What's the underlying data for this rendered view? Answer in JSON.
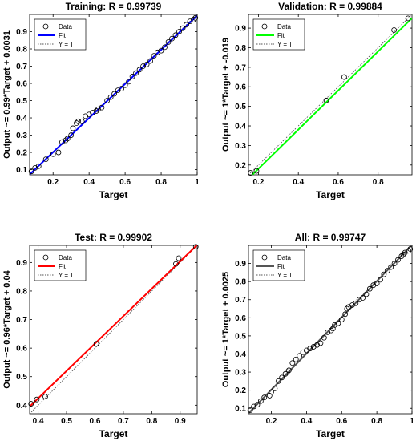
{
  "chart_data": [
    {
      "type": "scatter",
      "title": "Training: R = 0.99739",
      "xlabel": "Target",
      "ylabel": "Output ~= 0.99*Target + 0.0031",
      "xlim": [
        0.07,
        1.0
      ],
      "ylim": [
        0.07,
        1.0
      ],
      "xticks": [
        0.2,
        0.4,
        0.6,
        0.8,
        1
      ],
      "yticks": [
        0.1,
        0.2,
        0.3,
        0.4,
        0.5,
        0.6,
        0.7,
        0.8,
        0.9
      ],
      "xtick_labels": [
        "0.2",
        "0.4",
        "0.6",
        "0.8",
        "1"
      ],
      "ytick_labels": [
        "0.1",
        "0.2",
        "0.3",
        "0.4",
        "0.5",
        "0.6",
        "0.7",
        "0.8",
        "0.9"
      ],
      "fit": {
        "slope": 0.99,
        "intercept": 0.0031,
        "color": "#0000ff"
      },
      "legend": {
        "position": "top-left",
        "entries": [
          "Data",
          "Fit",
          "Y = T"
        ]
      },
      "grid": false,
      "series": [
        {
          "name": "Data",
          "x": [
            0.08,
            0.1,
            0.12,
            0.16,
            0.2,
            0.23,
            0.25,
            0.27,
            0.28,
            0.3,
            0.31,
            0.33,
            0.34,
            0.36,
            0.38,
            0.4,
            0.42,
            0.44,
            0.45,
            0.47,
            0.5,
            0.52,
            0.54,
            0.56,
            0.58,
            0.6,
            0.62,
            0.64,
            0.66,
            0.68,
            0.7,
            0.72,
            0.74,
            0.76,
            0.78,
            0.8,
            0.82,
            0.84,
            0.86,
            0.88,
            0.9,
            0.92,
            0.94,
            0.96,
            0.98,
            0.99
          ],
          "y": [
            0.09,
            0.11,
            0.12,
            0.16,
            0.19,
            0.2,
            0.26,
            0.27,
            0.28,
            0.3,
            0.34,
            0.37,
            0.38,
            0.38,
            0.41,
            0.42,
            0.43,
            0.44,
            0.45,
            0.46,
            0.5,
            0.52,
            0.54,
            0.56,
            0.57,
            0.59,
            0.61,
            0.64,
            0.66,
            0.68,
            0.7,
            0.71,
            0.73,
            0.76,
            0.78,
            0.79,
            0.81,
            0.84,
            0.86,
            0.88,
            0.9,
            0.92,
            0.94,
            0.96,
            0.97,
            0.98
          ]
        }
      ]
    },
    {
      "type": "scatter",
      "title": "Validation: R = 0.99884",
      "xlabel": "Target",
      "ylabel": "Output ~= 1*Target + -0.019",
      "xlim": [
        0.15,
        0.97
      ],
      "ylim": [
        0.15,
        0.97
      ],
      "xticks": [
        0.2,
        0.4,
        0.6,
        0.8
      ],
      "yticks": [
        0.2,
        0.3,
        0.4,
        0.5,
        0.6,
        0.7,
        0.8,
        0.9
      ],
      "xtick_labels": [
        "0.2",
        "0.4",
        "0.6",
        "0.8"
      ],
      "ytick_labels": [
        "0.2",
        "0.3",
        "0.4",
        "0.5",
        "0.6",
        "0.7",
        "0.8",
        "0.9"
      ],
      "fit": {
        "slope": 1,
        "intercept": -0.019,
        "color": "#00ff00"
      },
      "legend": {
        "position": "top-left",
        "entries": [
          "Data",
          "Fit",
          "Y = T"
        ]
      },
      "grid": false,
      "series": [
        {
          "name": "Data",
          "x": [
            0.16,
            0.19,
            0.54,
            0.63,
            0.88,
            0.95
          ],
          "y": [
            0.16,
            0.17,
            0.53,
            0.65,
            0.89,
            0.95
          ]
        }
      ]
    },
    {
      "type": "scatter",
      "title": "Test: R = 0.99902",
      "xlabel": "Target",
      "ylabel": "Output ~= 0.96*Target + 0.04",
      "xlim": [
        0.37,
        0.96
      ],
      "ylim": [
        0.37,
        0.96
      ],
      "xticks": [
        0.4,
        0.5,
        0.6,
        0.7,
        0.8,
        0.9
      ],
      "yticks": [
        0.4,
        0.5,
        0.6,
        0.7,
        0.8,
        0.9
      ],
      "xtick_labels": [
        "0.4",
        "0.5",
        "0.6",
        "0.7",
        "0.8",
        "0.9"
      ],
      "ytick_labels": [
        "0.4",
        "0.5",
        "0.6",
        "0.7",
        "0.8",
        "0.9"
      ],
      "fit": {
        "slope": 0.96,
        "intercept": 0.04,
        "color": "#ff0000"
      },
      "legend": {
        "position": "top-left",
        "entries": [
          "Data",
          "Fit",
          "Y = T"
        ]
      },
      "grid": false,
      "series": [
        {
          "name": "Data",
          "x": [
            0.375,
            0.395,
            0.425,
            0.605,
            0.885,
            0.895,
            0.955
          ],
          "y": [
            0.405,
            0.42,
            0.43,
            0.615,
            0.895,
            0.915,
            0.955
          ]
        }
      ]
    },
    {
      "type": "scatter",
      "title": "All: R = 0.99747",
      "xlabel": "Target",
      "ylabel": "Output ~= 1*Target + 0.0025",
      "xlim": [
        0.07,
        1.0
      ],
      "ylim": [
        0.07,
        1.0
      ],
      "xticks": [
        0.2,
        0.4,
        0.6,
        0.8,
        1
      ],
      "yticks": [
        0.1,
        0.2,
        0.3,
        0.4,
        0.5,
        0.6,
        0.7,
        0.8,
        0.9
      ],
      "xtick_labels": [
        "0.2",
        "0.4",
        "0.6",
        "0.8",
        "1"
      ],
      "ytick_labels": [
        "0.1",
        "0.2",
        "0.3",
        "0.4",
        "0.5",
        "0.6",
        "0.7",
        "0.8",
        "0.9"
      ],
      "fit": {
        "slope": 1,
        "intercept": 0.0025,
        "color": "#555555"
      },
      "legend": {
        "position": "top-left",
        "entries": [
          "Data",
          "Fit",
          "Y = T"
        ]
      },
      "grid": false,
      "series": [
        {
          "name": "Data",
          "x": [
            0.08,
            0.1,
            0.12,
            0.14,
            0.16,
            0.19,
            0.2,
            0.22,
            0.24,
            0.26,
            0.28,
            0.29,
            0.3,
            0.32,
            0.34,
            0.36,
            0.38,
            0.4,
            0.42,
            0.44,
            0.46,
            0.48,
            0.5,
            0.52,
            0.54,
            0.55,
            0.56,
            0.58,
            0.6,
            0.62,
            0.63,
            0.64,
            0.66,
            0.68,
            0.7,
            0.72,
            0.74,
            0.76,
            0.78,
            0.8,
            0.82,
            0.84,
            0.86,
            0.88,
            0.9,
            0.92,
            0.94,
            0.95,
            0.96,
            0.98,
            0.99
          ],
          "y": [
            0.09,
            0.11,
            0.12,
            0.14,
            0.16,
            0.17,
            0.19,
            0.21,
            0.25,
            0.27,
            0.29,
            0.3,
            0.31,
            0.35,
            0.37,
            0.39,
            0.41,
            0.42,
            0.43,
            0.44,
            0.45,
            0.46,
            0.49,
            0.52,
            0.53,
            0.54,
            0.56,
            0.57,
            0.59,
            0.62,
            0.65,
            0.66,
            0.67,
            0.68,
            0.7,
            0.71,
            0.73,
            0.76,
            0.78,
            0.79,
            0.81,
            0.84,
            0.86,
            0.88,
            0.9,
            0.92,
            0.94,
            0.95,
            0.96,
            0.97,
            0.98
          ]
        }
      ]
    }
  ]
}
